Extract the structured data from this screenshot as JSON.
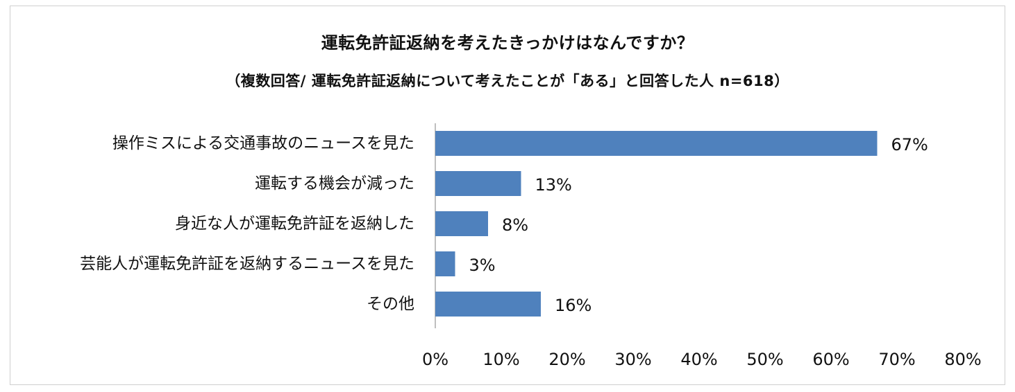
{
  "chart_data": {
    "type": "bar",
    "orientation": "horizontal",
    "title": "運転免許証返納を考えたきっかけはなんですか？",
    "subtitle": "（複数回答/ 運転免許証返納について考えたことが「ある」と回答した人 n=618）",
    "categories": [
      "操作ミスによる交通事故のニュースを見た",
      "運転する機会が減った",
      "身近な人が運転免許証を返納した",
      "芸能人が運転免許証を返納するニュースを見た",
      "その他"
    ],
    "values": [
      67,
      13,
      8,
      3,
      16
    ],
    "value_labels": [
      "67%",
      "13%",
      "8%",
      "3%",
      "16%"
    ],
    "xlim": [
      0,
      80
    ],
    "x_ticks": [
      0,
      10,
      20,
      30,
      40,
      50,
      60,
      70,
      80
    ],
    "x_tick_labels": [
      "0%",
      "10%",
      "20%",
      "30%",
      "40%",
      "50%",
      "60%",
      "70%",
      "80%"
    ],
    "grid": false,
    "legend": "none",
    "bar_color": "#4f81bd",
    "axis_color": "#bfbfbf"
  }
}
